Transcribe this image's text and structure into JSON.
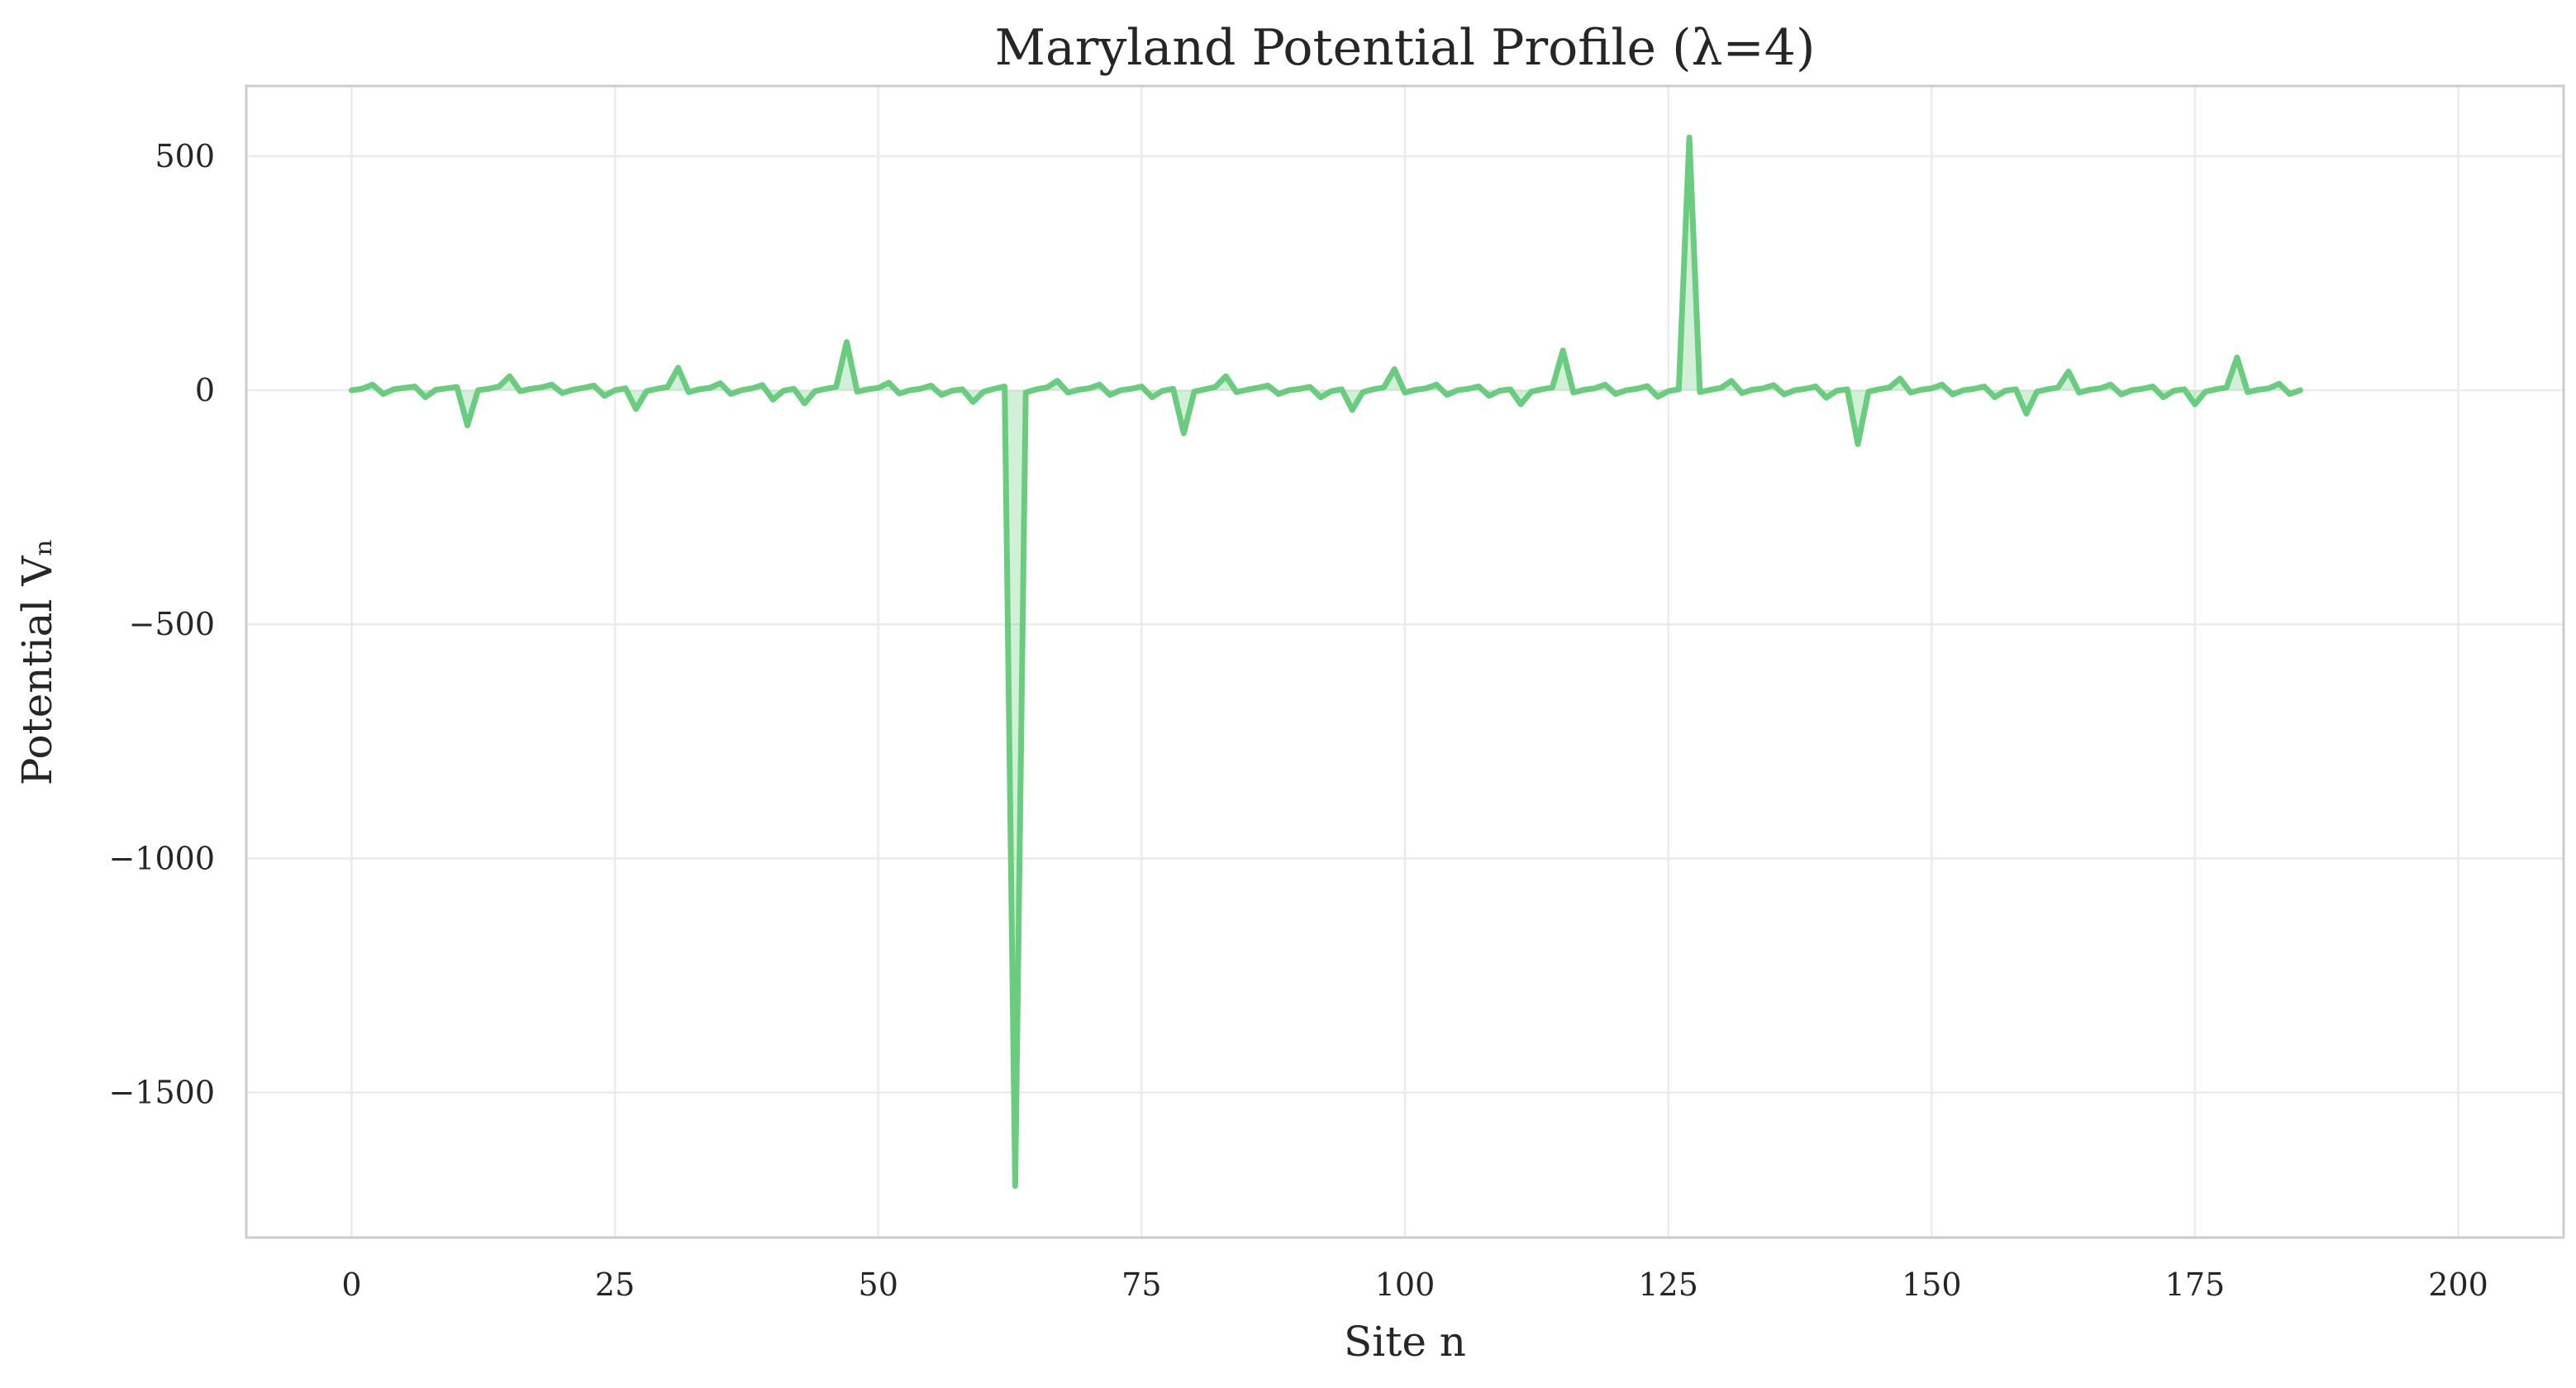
{
  "chart_data": {
    "type": "line",
    "title": "Maryland Potential Profile (λ=4)",
    "xlabel": "Site n",
    "ylabel": "Potential Vₙ",
    "xlim": [
      -10,
      210
    ],
    "ylim": [
      -1810,
      650
    ],
    "x_ticks": [
      0,
      25,
      50,
      75,
      100,
      125,
      150,
      175,
      200
    ],
    "y_ticks": [
      500,
      0,
      -500,
      -1000,
      -1500
    ],
    "y_tick_labels": [
      "500",
      "0",
      "−500",
      "−1000",
      "−1500"
    ],
    "grid": true,
    "legend": "none",
    "colors": {
      "line": "#6acc7e",
      "fill": "#6acc7e",
      "grid": "#ebebeb",
      "frame": "#cccccc"
    },
    "series": [
      {
        "x_start": 0,
        "x_step": 1,
        "values": [
          0,
          3,
          12,
          -8,
          2,
          5,
          8,
          -15,
          1,
          4,
          7,
          -75,
          0,
          3,
          8,
          30,
          -2,
          3,
          6,
          12,
          -6,
          1,
          5,
          10,
          -12,
          0,
          4,
          -40,
          -2,
          3,
          7,
          48,
          -4,
          2,
          5,
          15,
          -8,
          0,
          4,
          11,
          -20,
          -1,
          3,
          -28,
          -2,
          3,
          7,
          103,
          -3,
          2,
          5,
          16,
          -7,
          0,
          3,
          10,
          -10,
          -1,
          2,
          -25,
          -3,
          3,
          8,
          -1700,
          -5,
          2,
          6,
          20,
          -5,
          1,
          4,
          12,
          -10,
          0,
          3,
          8,
          -15,
          -1,
          3,
          -92,
          -3,
          2,
          7,
          30,
          -4,
          1,
          5,
          10,
          -8,
          0,
          3,
          7,
          -15,
          -2,
          2,
          -42,
          -4,
          2,
          6,
          45,
          -5,
          1,
          4,
          12,
          -10,
          0,
          3,
          8,
          -12,
          -1,
          2,
          -30,
          -3,
          2,
          6,
          85,
          -5,
          1,
          4,
          12,
          -8,
          0,
          3,
          9,
          -14,
          -2,
          2,
          540,
          -4,
          1,
          5,
          20,
          -6,
          1,
          4,
          11,
          -9,
          0,
          3,
          8,
          -16,
          -1,
          2,
          -115,
          -3,
          2,
          6,
          25,
          -5,
          1,
          4,
          12,
          -9,
          0,
          3,
          8,
          -15,
          -1,
          2,
          -50,
          -3,
          2,
          6,
          40,
          -5,
          1,
          4,
          12,
          -9,
          0,
          3,
          8,
          -15,
          -1,
          2,
          -30,
          -3,
          2,
          6,
          70,
          -4,
          1,
          4,
          14,
          -8,
          0
        ]
      }
    ]
  }
}
